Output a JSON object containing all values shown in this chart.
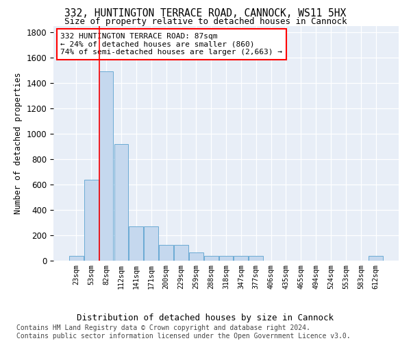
{
  "title": "332, HUNTINGTON TERRACE ROAD, CANNOCK, WS11 5HX",
  "subtitle": "Size of property relative to detached houses in Cannock",
  "xlabel": "Distribution of detached houses by size in Cannock",
  "ylabel": "Number of detached properties",
  "bar_color": "#c5d8ee",
  "bar_edge_color": "#6aaad4",
  "background_color": "#e8eef7",
  "grid_color": "#ffffff",
  "categories": [
    "23sqm",
    "53sqm",
    "82sqm",
    "112sqm",
    "141sqm",
    "171sqm",
    "200sqm",
    "229sqm",
    "259sqm",
    "288sqm",
    "318sqm",
    "347sqm",
    "377sqm",
    "406sqm",
    "435sqm",
    "465sqm",
    "494sqm",
    "524sqm",
    "553sqm",
    "583sqm",
    "612sqm"
  ],
  "values": [
    40,
    640,
    1490,
    920,
    270,
    270,
    125,
    125,
    65,
    40,
    40,
    40,
    40,
    0,
    0,
    0,
    0,
    0,
    0,
    0,
    40
  ],
  "ylim": [
    0,
    1850
  ],
  "yticks": [
    0,
    200,
    400,
    600,
    800,
    1000,
    1200,
    1400,
    1600,
    1800
  ],
  "red_line_index": 2,
  "annotation_line1": "332 HUNTINGTON TERRACE ROAD: 87sqm",
  "annotation_line2": "← 24% of detached houses are smaller (860)",
  "annotation_line3": "74% of semi-detached houses are larger (2,663) →",
  "footer_text": "Contains HM Land Registry data © Crown copyright and database right 2024.\nContains public sector information licensed under the Open Government Licence v3.0.",
  "title_fontsize": 10.5,
  "subtitle_fontsize": 9,
  "annotation_fontsize": 8,
  "footer_fontsize": 7,
  "ylabel_fontsize": 8.5,
  "xlabel_fontsize": 9
}
